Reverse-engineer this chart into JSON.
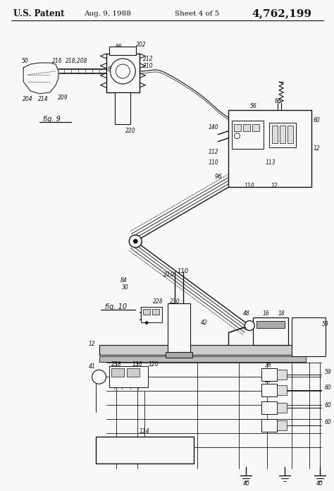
{
  "title_left": "U.S. Patent",
  "title_date": "Aug. 9, 1988",
  "title_sheet": "Sheet 4 of 5",
  "title_patent": "4,762,199",
  "bg": "#f8f8f6",
  "lc": "#111111",
  "fig_width": 4.74,
  "fig_height": 6.96,
  "dpi": 100
}
